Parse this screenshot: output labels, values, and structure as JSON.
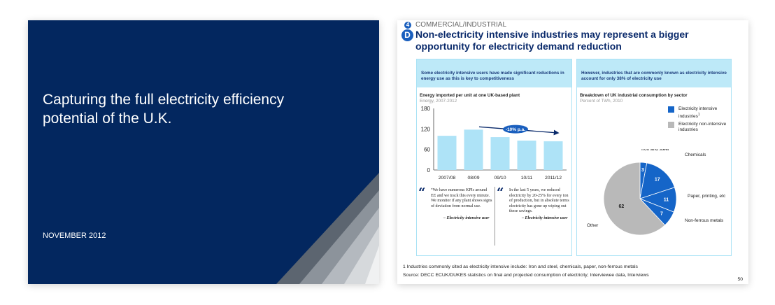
{
  "cover": {
    "title": "Capturing the full electricity efficiency potential of the U.K.",
    "date": "NOVEMBER 2012"
  },
  "slide": {
    "section_number": "4",
    "section_label": "COMMERCIAL/INDUSTRIAL",
    "letter": "D",
    "title": "Non-electricity intensive industries may represent a bigger opportunity for electricity demand reduction",
    "left_panel": {
      "header": "Some electricity intensive users have made significant reductions in energy use as this is key to competitiveness",
      "chart_title": "Energy imported per unit at one UK-based plant",
      "chart_subtitle": "Energy, 2007-2012",
      "trend_label": "-10% p.a.",
      "quote1": {
        "text": "“We have numerous KPIs around EE and we track this every minute. We monitor if any plant shows signs of deviation from normal use.",
        "attribution": "– Electricity intensive user"
      },
      "quote2": {
        "text": "In the last 5 years, we reduced electricity by 20-25% for every ton of production, but in absolute terms electricity has gone up wiping out these savings.",
        "attribution": "– Electricity intensive user"
      }
    },
    "right_panel": {
      "header": "However, industries that are commonly known as electricity intensive account for only 38% of electricity use",
      "chart_title": "Breakdown of UK industrial consumption by sector",
      "chart_subtitle": "Percent of TWh, 2010",
      "legend": [
        {
          "label": "Electricity intensive industries",
          "sup": "1",
          "color": "#1565c8"
        },
        {
          "label": "Electricity non-intensive industries",
          "sup": "",
          "color": "#b9b9b9"
        }
      ]
    },
    "footnote": "1 Industries commonly cited as electricity intensive include: Iron and steel, chemicals, paper, non-ferrous metals",
    "source": "Source: DECC ECUK/DUKES statistics on final and projected consumption of electricity; Interviewee data, Interviews",
    "page_number": "50"
  },
  "chart_data": [
    {
      "type": "bar",
      "categories": [
        "2007/08",
        "08/09",
        "09/10",
        "10/11",
        "2011/12"
      ],
      "values": [
        100,
        118,
        96,
        86,
        84
      ],
      "ylim": [
        0,
        180
      ],
      "yticks": [
        "0",
        "60",
        "120",
        "180"
      ],
      "color": "#aee3f7",
      "annotation": "-10% p.a."
    },
    {
      "type": "pie",
      "slices": [
        {
          "label": "Iron and steel",
          "value": 3,
          "color": "#1565c8"
        },
        {
          "label": "Chemicals",
          "value": 17,
          "color": "#1565c8"
        },
        {
          "label": "Paper, printing, etc",
          "value": 11,
          "color": "#1565c8"
        },
        {
          "label": "Non-ferrous metals",
          "value": 7,
          "color": "#1565c8"
        },
        {
          "label": "Other",
          "value": 62,
          "color": "#b9b9b9"
        }
      ]
    }
  ]
}
